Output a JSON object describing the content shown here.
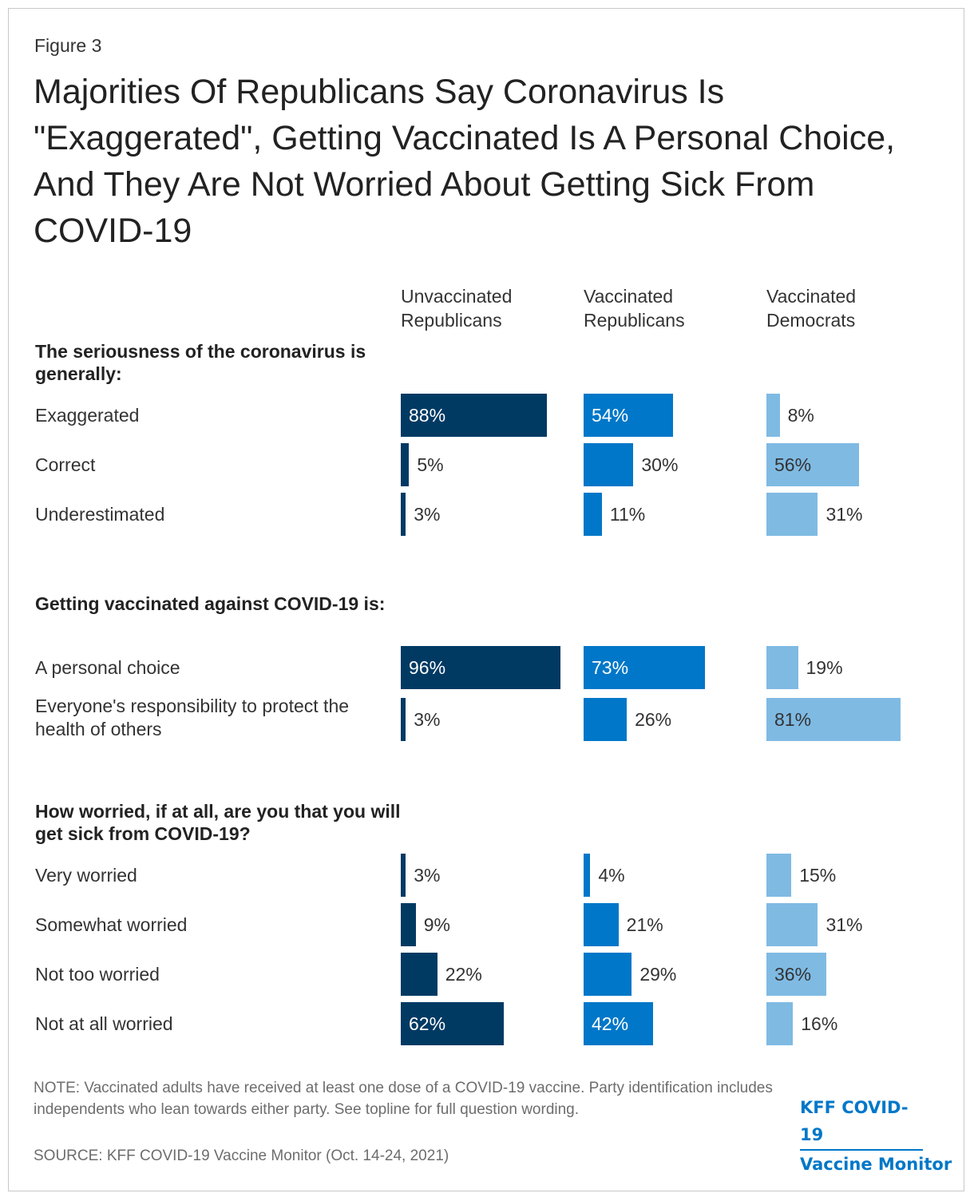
{
  "figure_label": "Figure 3",
  "title": "Majorities Of Republicans Say Coronavirus Is \"Exaggerated\", Getting Vaccinated Is A Personal Choice, And They Are Not Worried About Getting Sick From COVID-19",
  "note": "NOTE: Vaccinated adults have received at least one dose of a COVID-19 vaccine. Party identification includes independents who lean towards either party. See topline for full question wording.",
  "source": "SOURCE: KFF COVID-19 Vaccine Monitor (Oct. 14-24, 2021)",
  "brand": {
    "line1": "KFF COVID-19",
    "line2": "Vaccine Monitor"
  },
  "colors": {
    "unvaccinated_republicans": "#003a63",
    "vaccinated_republicans": "#0077c8",
    "vaccinated_democrats": "#7fbae3",
    "text_dark": "#333333",
    "text_light": "#ffffff"
  },
  "chart_data": {
    "type": "bar",
    "orientation": "horizontal",
    "unit": "%",
    "xlim": [
      0,
      100
    ],
    "columns": [
      {
        "key": "unvaccinated_republicans",
        "label": "Unvaccinated Republicans"
      },
      {
        "key": "vaccinated_republicans",
        "label": "Vaccinated Republicans"
      },
      {
        "key": "vaccinated_democrats",
        "label": "Vaccinated Democrats"
      }
    ],
    "sections": [
      {
        "title": "The seriousness of the coronavirus is generally:",
        "rows": [
          {
            "label": "Exaggerated",
            "values": [
              88,
              54,
              8
            ]
          },
          {
            "label": "Correct",
            "values": [
              5,
              30,
              56
            ]
          },
          {
            "label": "Underestimated",
            "values": [
              3,
              11,
              31
            ]
          }
        ]
      },
      {
        "title": "Getting vaccinated against COVID-19 is:",
        "rows": [
          {
            "label": "A personal choice",
            "values": [
              96,
              73,
              19
            ]
          },
          {
            "label": "Everyone's responsibility to protect the health of others",
            "values": [
              3,
              26,
              81
            ]
          }
        ]
      },
      {
        "title": "How worried, if at all, are you that you will get sick from COVID-19?",
        "rows": [
          {
            "label": "Very worried",
            "values": [
              3,
              4,
              15
            ]
          },
          {
            "label": "Somewhat worried",
            "values": [
              9,
              21,
              31
            ]
          },
          {
            "label": "Not too worried",
            "values": [
              22,
              29,
              36
            ]
          },
          {
            "label": "Not at all worried",
            "values": [
              62,
              42,
              16
            ]
          }
        ]
      }
    ]
  }
}
